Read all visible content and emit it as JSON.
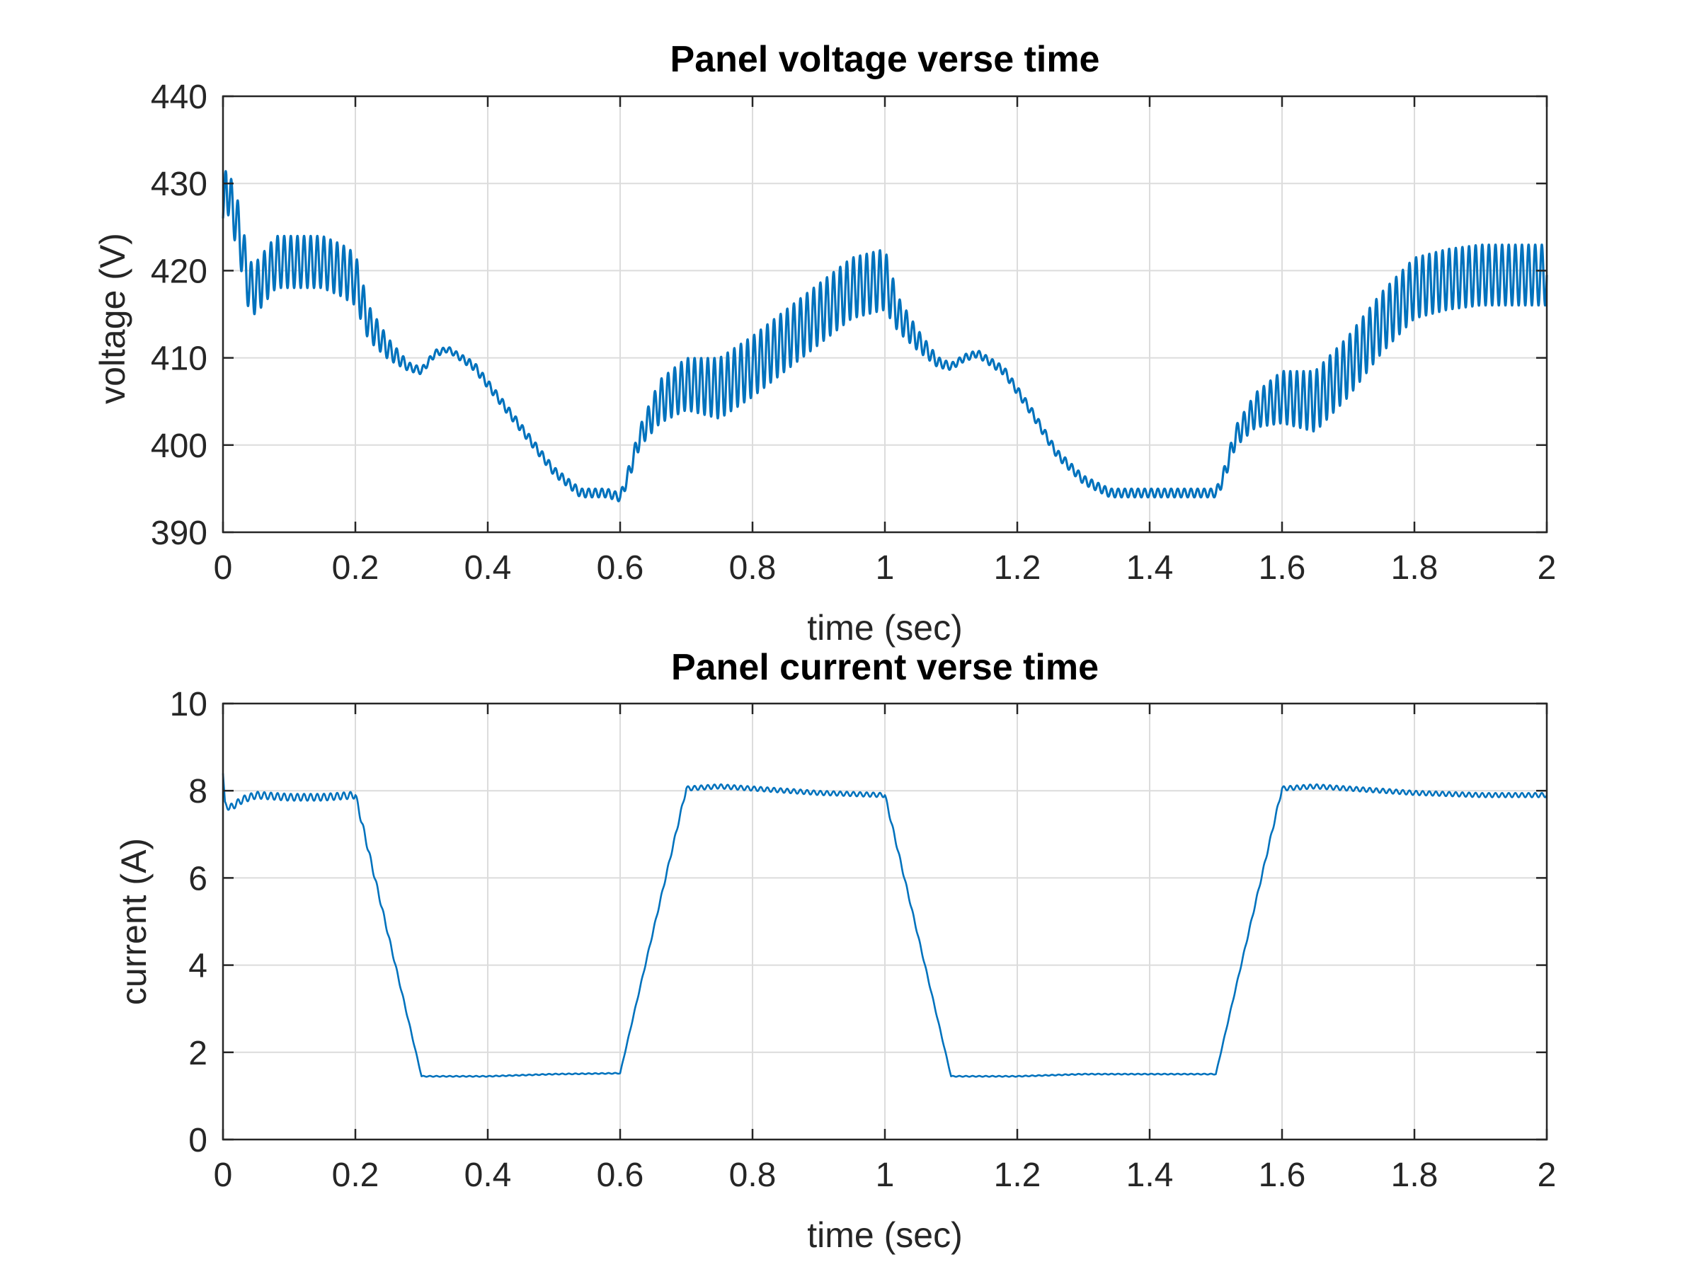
{
  "chart_data": [
    {
      "type": "line",
      "title": "Panel voltage verse time",
      "xlabel": "time (sec)",
      "ylabel": "voltage (V)",
      "xlim": [
        0,
        2
      ],
      "ylim": [
        390,
        440
      ],
      "xticks": [
        0,
        0.2,
        0.4,
        0.6,
        0.8,
        1,
        1.2,
        1.4,
        1.6,
        1.8,
        2
      ],
      "xtick_labels": [
        "0",
        "0.2",
        "0.4",
        "0.6",
        "0.8",
        "1",
        "1.2",
        "1.4",
        "1.6",
        "1.8",
        "2"
      ],
      "yticks": [
        390,
        400,
        410,
        420,
        430,
        440
      ],
      "ytick_labels": [
        "390",
        "400",
        "410",
        "420",
        "430",
        "440"
      ],
      "grid": true,
      "ripple_frequency_hz": 100,
      "series": [
        {
          "color": "#0072BD",
          "x": [
            0,
            0.005,
            0.01,
            0.02,
            0.03,
            0.04,
            0.05,
            0.06,
            0.08,
            0.1,
            0.12,
            0.15,
            0.18,
            0.2,
            0.22,
            0.25,
            0.28,
            0.3,
            0.32,
            0.34,
            0.38,
            0.42,
            0.46,
            0.5,
            0.54,
            0.56,
            0.58,
            0.6,
            0.61,
            0.63,
            0.66,
            0.7,
            0.75,
            0.8,
            0.85,
            0.9,
            0.95,
            1.0,
            1.02,
            1.05,
            1.08,
            1.1,
            1.12,
            1.14,
            1.18,
            1.22,
            1.26,
            1.3,
            1.34,
            1.38,
            1.42,
            1.46,
            1.5,
            1.51,
            1.53,
            1.56,
            1.6,
            1.65,
            1.7,
            1.75,
            1.8,
            1.85,
            1.9,
            1.95,
            2.0
          ],
          "center": [
            426,
            431,
            428,
            426,
            422,
            418,
            418,
            419,
            421,
            421,
            421,
            421,
            420,
            419,
            414,
            411,
            409,
            408.5,
            410.5,
            411,
            409,
            405,
            401,
            397,
            394.5,
            394.5,
            394.5,
            394,
            396,
            401,
            405,
            407,
            406.5,
            409,
            412,
            415,
            418,
            419,
            415,
            412,
            409.5,
            409,
            410,
            410.5,
            408.5,
            404,
            399,
            396,
            394.5,
            394.5,
            394.5,
            394.5,
            394.5,
            396,
            401,
            404,
            405.5,
            405,
            409,
            414,
            418,
            419,
            419.5,
            419.5,
            419.5
          ],
          "ripple_amplitude": [
            0,
            3,
            3,
            3,
            3,
            3,
            3,
            3,
            3,
            3,
            3,
            3,
            3,
            3,
            2,
            1.2,
            0.5,
            0.4,
            0.4,
            0.3,
            0.5,
            0.5,
            0.5,
            0.5,
            0.5,
            0.5,
            0.5,
            0.5,
            0.8,
            1.2,
            2.5,
            3,
            3.5,
            3.5,
            3.5,
            3.5,
            3.5,
            3.5,
            2,
            1.2,
            0.6,
            0.4,
            0.4,
            0.4,
            0.5,
            0.5,
            0.5,
            0.5,
            0.5,
            0.5,
            0.5,
            0.5,
            0.5,
            0.8,
            1.2,
            2,
            3,
            3.5,
            3.5,
            3.5,
            3.5,
            3.5,
            3.5,
            3.5,
            3.5
          ]
        }
      ]
    },
    {
      "type": "line",
      "title": "Panel current verse time",
      "xlabel": "time (sec)",
      "ylabel": "current (A)",
      "xlim": [
        0,
        2
      ],
      "ylim": [
        0,
        10
      ],
      "xticks": [
        0,
        0.2,
        0.4,
        0.6,
        0.8,
        1,
        1.2,
        1.4,
        1.6,
        1.8,
        2
      ],
      "xtick_labels": [
        "0",
        "0.2",
        "0.4",
        "0.6",
        "0.8",
        "1",
        "1.2",
        "1.4",
        "1.6",
        "1.8",
        "2"
      ],
      "yticks": [
        0,
        2,
        4,
        6,
        8,
        10
      ],
      "ytick_labels": [
        "0",
        "2",
        "4",
        "6",
        "8",
        "10"
      ],
      "grid": true,
      "ripple_frequency_hz": 100,
      "series": [
        {
          "color": "#0072BD",
          "x": [
            0,
            0.003,
            0.01,
            0.02,
            0.03,
            0.05,
            0.1,
            0.15,
            0.2,
            0.3,
            0.4,
            0.5,
            0.6,
            0.7,
            0.75,
            0.8,
            0.9,
            1.0,
            1.1,
            1.2,
            1.3,
            1.4,
            1.5,
            1.6,
            1.65,
            1.7,
            1.8,
            1.9,
            2.0
          ],
          "center": [
            8.4,
            7.7,
            7.6,
            7.7,
            7.8,
            7.9,
            7.85,
            7.85,
            7.9,
            1.45,
            1.45,
            1.5,
            1.52,
            8.05,
            8.1,
            8.05,
            7.95,
            7.9,
            1.45,
            1.45,
            1.5,
            1.5,
            1.5,
            8.05,
            8.1,
            8.05,
            7.95,
            7.9,
            7.9
          ],
          "ripple_amplitude": [
            0,
            0.05,
            0.08,
            0.08,
            0.08,
            0.08,
            0.08,
            0.08,
            0.08,
            0.01,
            0.01,
            0.01,
            0.01,
            0.05,
            0.05,
            0.05,
            0.05,
            0.05,
            0.01,
            0.01,
            0.01,
            0.01,
            0.01,
            0.05,
            0.05,
            0.05,
            0.05,
            0.05,
            0.05
          ]
        }
      ]
    }
  ]
}
